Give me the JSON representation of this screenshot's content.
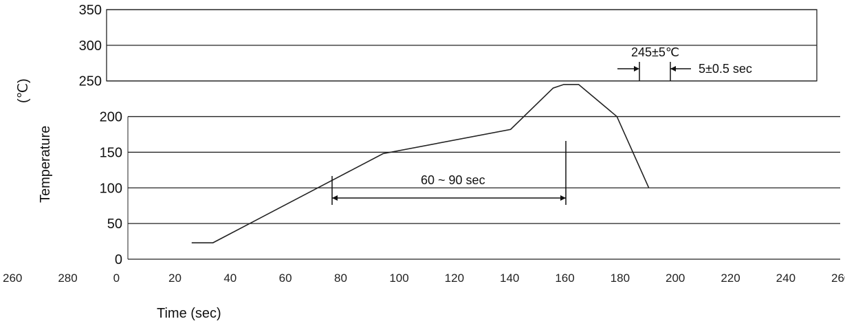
{
  "chart_data": {
    "type": "line",
    "ylabel": "Temperature",
    "yunit": "(℃)",
    "xlabel": "Time (sec)",
    "y_ticks": [
      0,
      50,
      100,
      150,
      200,
      250,
      300,
      350
    ],
    "x_tick_labels": [
      "260",
      "280",
      "0",
      "20",
      "40",
      "60",
      "80",
      "100",
      "120",
      "140",
      "160",
      "180",
      "200",
      "220",
      "240",
      "260"
    ],
    "ylim": [
      0,
      350
    ],
    "grid": "horizontal",
    "series": [
      {
        "x": [
          0,
          10,
          90,
          150,
          170,
          175,
          182,
          200,
          215
        ],
        "y": [
          23,
          23,
          148,
          182,
          240,
          245,
          245,
          200,
          100
        ]
      }
    ],
    "annotations": {
      "peak": "245±5℃",
      "peak_time": "5±0.5 sec",
      "soak": "60 ~ 90 sec"
    }
  }
}
